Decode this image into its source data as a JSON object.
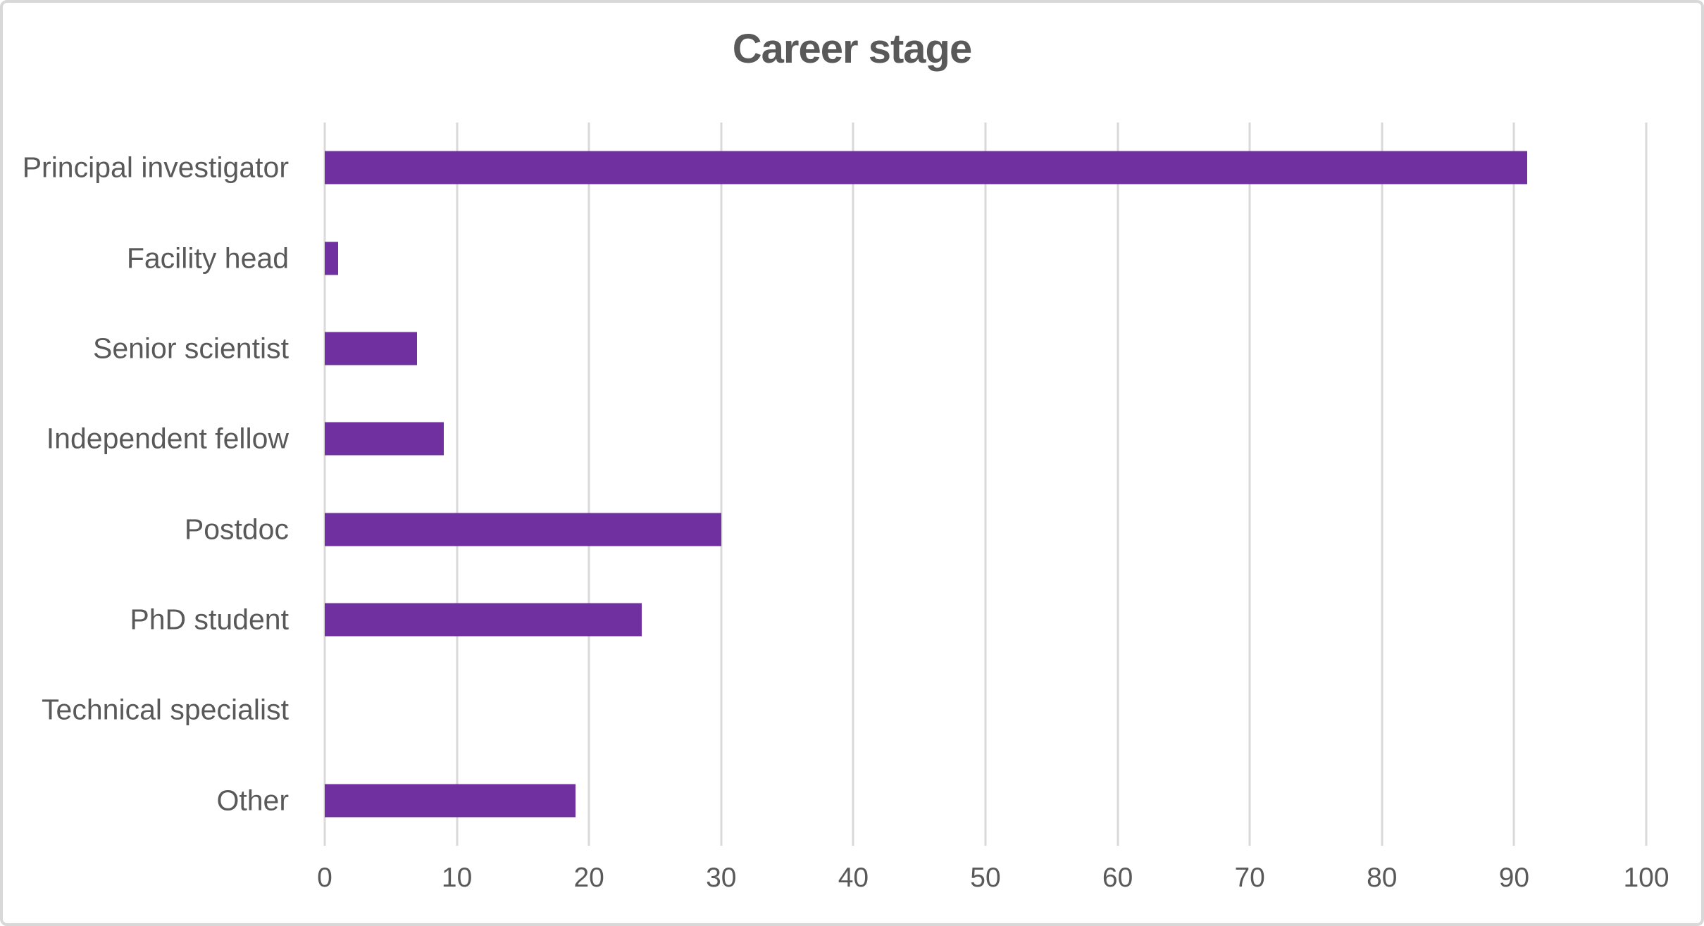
{
  "chart_data": {
    "type": "bar",
    "orientation": "horizontal",
    "title": "Career stage",
    "categories": [
      "Principal investigator",
      "Facility head",
      "Senior scientist",
      "Independent fellow",
      "Postdoc",
      "PhD student",
      "Technical specialist",
      "Other"
    ],
    "values": [
      91,
      1,
      7,
      9,
      30,
      24,
      0,
      19
    ],
    "xlabel": "",
    "ylabel": "",
    "xlim": [
      0,
      100
    ],
    "xticks": [
      0,
      10,
      20,
      30,
      40,
      50,
      60,
      70,
      80,
      90,
      100
    ],
    "grid": "vertical-only",
    "legend": "none",
    "bar_color": "#7030A0",
    "text_color": "#595959",
    "gridline_color": "#D9D9D9",
    "frame_border_color": "#D8D8D8",
    "background_color": "#FFFFFF"
  }
}
